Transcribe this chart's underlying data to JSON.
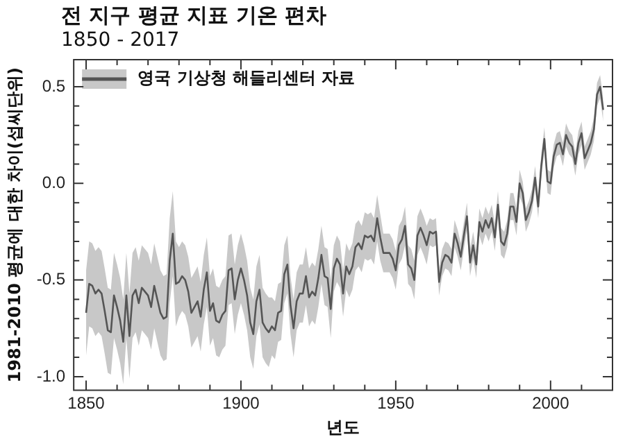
{
  "chart_data": {
    "type": "line",
    "title": "전 지구 평균 지표 기온 편차",
    "subtitle": "1850 - 2017",
    "xlabel": "년도",
    "ylabel": "1981-2010 평균에 대한 차이(섭씨단위)",
    "x": [
      1850,
      1851,
      1852,
      1853,
      1854,
      1855,
      1856,
      1857,
      1858,
      1859,
      1860,
      1861,
      1862,
      1863,
      1864,
      1865,
      1866,
      1867,
      1868,
      1869,
      1870,
      1871,
      1872,
      1873,
      1874,
      1875,
      1876,
      1877,
      1878,
      1879,
      1880,
      1881,
      1882,
      1883,
      1884,
      1885,
      1886,
      1887,
      1888,
      1889,
      1890,
      1891,
      1892,
      1893,
      1894,
      1895,
      1896,
      1897,
      1898,
      1899,
      1900,
      1901,
      1902,
      1903,
      1904,
      1905,
      1906,
      1907,
      1908,
      1909,
      1910,
      1911,
      1912,
      1913,
      1914,
      1915,
      1916,
      1917,
      1918,
      1919,
      1920,
      1921,
      1922,
      1923,
      1924,
      1925,
      1926,
      1927,
      1928,
      1929,
      1930,
      1931,
      1932,
      1933,
      1934,
      1935,
      1936,
      1937,
      1938,
      1939,
      1940,
      1941,
      1942,
      1943,
      1944,
      1945,
      1946,
      1947,
      1948,
      1949,
      1950,
      1951,
      1952,
      1953,
      1954,
      1955,
      1956,
      1957,
      1958,
      1959,
      1960,
      1961,
      1962,
      1963,
      1964,
      1965,
      1966,
      1967,
      1968,
      1969,
      1970,
      1971,
      1972,
      1973,
      1974,
      1975,
      1976,
      1977,
      1978,
      1979,
      1980,
      1981,
      1982,
      1983,
      1984,
      1985,
      1986,
      1987,
      1988,
      1989,
      1990,
      1991,
      1992,
      1993,
      1994,
      1995,
      1996,
      1997,
      1998,
      1999,
      2000,
      2001,
      2002,
      2003,
      2004,
      2005,
      2006,
      2007,
      2008,
      2009,
      2010,
      2011,
      2012,
      2013,
      2014,
      2015,
      2016,
      2017
    ],
    "series": [
      {
        "name": "영국 기상청 해들리센터 자료",
        "color": "#555555",
        "values": [
          -0.67,
          -0.52,
          -0.53,
          -0.57,
          -0.55,
          -0.57,
          -0.66,
          -0.76,
          -0.77,
          -0.58,
          -0.64,
          -0.71,
          -0.82,
          -0.58,
          -0.79,
          -0.58,
          -0.55,
          -0.62,
          -0.54,
          -0.56,
          -0.58,
          -0.64,
          -0.53,
          -0.6,
          -0.67,
          -0.7,
          -0.69,
          -0.4,
          -0.26,
          -0.52,
          -0.51,
          -0.48,
          -0.5,
          -0.56,
          -0.67,
          -0.64,
          -0.61,
          -0.69,
          -0.55,
          -0.46,
          -0.66,
          -0.62,
          -0.71,
          -0.72,
          -0.68,
          -0.66,
          -0.45,
          -0.44,
          -0.6,
          -0.5,
          -0.44,
          -0.5,
          -0.58,
          -0.72,
          -0.78,
          -0.61,
          -0.55,
          -0.72,
          -0.75,
          -0.77,
          -0.74,
          -0.76,
          -0.67,
          -0.66,
          -0.47,
          -0.42,
          -0.63,
          -0.75,
          -0.61,
          -0.57,
          -0.57,
          -0.48,
          -0.59,
          -0.56,
          -0.58,
          -0.49,
          -0.37,
          -0.48,
          -0.49,
          -0.65,
          -0.44,
          -0.39,
          -0.42,
          -0.57,
          -0.43,
          -0.47,
          -0.43,
          -0.33,
          -0.31,
          -0.34,
          -0.27,
          -0.28,
          -0.27,
          -0.3,
          -0.18,
          -0.28,
          -0.36,
          -0.36,
          -0.36,
          -0.39,
          -0.45,
          -0.32,
          -0.29,
          -0.22,
          -0.42,
          -0.44,
          -0.5,
          -0.27,
          -0.23,
          -0.27,
          -0.32,
          -0.25,
          -0.26,
          -0.25,
          -0.51,
          -0.41,
          -0.37,
          -0.38,
          -0.41,
          -0.26,
          -0.31,
          -0.38,
          -0.27,
          -0.17,
          -0.41,
          -0.32,
          -0.42,
          -0.2,
          -0.25,
          -0.19,
          -0.23,
          -0.18,
          -0.28,
          -0.11,
          -0.3,
          -0.32,
          -0.26,
          -0.12,
          -0.12,
          -0.2,
          0.0,
          -0.05,
          -0.19,
          -0.15,
          -0.09,
          0.03,
          -0.12,
          0.09,
          0.23,
          0.01,
          0.0,
          0.14,
          0.2,
          0.21,
          0.15,
          0.25,
          0.21,
          0.19,
          0.1,
          0.21,
          0.26,
          0.13,
          0.17,
          0.21,
          0.28,
          0.46,
          0.5,
          0.38
        ],
        "lower": [
          -0.89,
          -0.74,
          -0.75,
          -0.79,
          -0.77,
          -0.79,
          -0.88,
          -0.98,
          -0.99,
          -0.8,
          -0.86,
          -0.93,
          -1.04,
          -0.8,
          -1.01,
          -0.8,
          -0.77,
          -0.84,
          -0.76,
          -0.78,
          -0.8,
          -0.86,
          -0.75,
          -0.82,
          -0.89,
          -0.92,
          -0.91,
          -0.62,
          -0.48,
          -0.74,
          -0.69,
          -0.66,
          -0.68,
          -0.74,
          -0.85,
          -0.82,
          -0.79,
          -0.87,
          -0.73,
          -0.64,
          -0.84,
          -0.8,
          -0.89,
          -0.9,
          -0.86,
          -0.84,
          -0.63,
          -0.62,
          -0.78,
          -0.68,
          -0.62,
          -0.68,
          -0.76,
          -0.9,
          -0.96,
          -0.79,
          -0.73,
          -0.9,
          -0.93,
          -0.95,
          -0.89,
          -0.91,
          -0.82,
          -0.81,
          -0.62,
          -0.57,
          -0.78,
          -0.9,
          -0.76,
          -0.72,
          -0.72,
          -0.63,
          -0.74,
          -0.71,
          -0.73,
          -0.64,
          -0.52,
          -0.63,
          -0.64,
          -0.8,
          -0.56,
          -0.51,
          -0.54,
          -0.69,
          -0.55,
          -0.59,
          -0.55,
          -0.45,
          -0.43,
          -0.46,
          -0.39,
          -0.4,
          -0.39,
          -0.42,
          -0.3,
          -0.4,
          -0.46,
          -0.46,
          -0.46,
          -0.49,
          -0.55,
          -0.42,
          -0.39,
          -0.32,
          -0.52,
          -0.54,
          -0.6,
          -0.37,
          -0.33,
          -0.37,
          -0.42,
          -0.32,
          -0.33,
          -0.32,
          -0.58,
          -0.48,
          -0.44,
          -0.45,
          -0.48,
          -0.33,
          -0.38,
          -0.45,
          -0.34,
          -0.24,
          -0.48,
          -0.39,
          -0.49,
          -0.27,
          -0.32,
          -0.26,
          -0.3,
          -0.25,
          -0.35,
          -0.18,
          -0.37,
          -0.39,
          -0.33,
          -0.19,
          -0.19,
          -0.27,
          -0.07,
          -0.11,
          -0.25,
          -0.21,
          -0.15,
          -0.03,
          -0.18,
          0.03,
          0.17,
          -0.05,
          -0.06,
          0.08,
          0.14,
          0.15,
          0.09,
          0.19,
          0.15,
          0.13,
          0.04,
          0.15,
          0.2,
          0.07,
          0.11,
          0.15,
          0.22,
          0.4,
          0.44,
          0.32
        ],
        "upper": [
          -0.45,
          -0.3,
          -0.31,
          -0.35,
          -0.33,
          -0.35,
          -0.44,
          -0.54,
          -0.55,
          -0.36,
          -0.42,
          -0.49,
          -0.6,
          -0.36,
          -0.57,
          -0.36,
          -0.33,
          -0.4,
          -0.32,
          -0.34,
          -0.36,
          -0.42,
          -0.31,
          -0.38,
          -0.45,
          -0.48,
          -0.47,
          -0.18,
          -0.04,
          -0.3,
          -0.33,
          -0.3,
          -0.32,
          -0.38,
          -0.49,
          -0.46,
          -0.43,
          -0.51,
          -0.37,
          -0.28,
          -0.48,
          -0.44,
          -0.53,
          -0.54,
          -0.5,
          -0.48,
          -0.27,
          -0.26,
          -0.42,
          -0.32,
          -0.26,
          -0.32,
          -0.4,
          -0.54,
          -0.6,
          -0.43,
          -0.37,
          -0.54,
          -0.57,
          -0.59,
          -0.59,
          -0.61,
          -0.52,
          -0.51,
          -0.32,
          -0.27,
          -0.48,
          -0.6,
          -0.46,
          -0.42,
          -0.42,
          -0.33,
          -0.44,
          -0.41,
          -0.43,
          -0.34,
          -0.22,
          -0.33,
          -0.34,
          -0.5,
          -0.32,
          -0.27,
          -0.3,
          -0.45,
          -0.31,
          -0.35,
          -0.31,
          -0.21,
          -0.19,
          -0.22,
          -0.15,
          -0.16,
          -0.15,
          -0.18,
          -0.06,
          -0.16,
          -0.26,
          -0.26,
          -0.26,
          -0.29,
          -0.35,
          -0.22,
          -0.19,
          -0.12,
          -0.32,
          -0.34,
          -0.4,
          -0.17,
          -0.13,
          -0.17,
          -0.22,
          -0.18,
          -0.19,
          -0.18,
          -0.44,
          -0.34,
          -0.3,
          -0.31,
          -0.34,
          -0.19,
          -0.24,
          -0.31,
          -0.2,
          -0.1,
          -0.34,
          -0.25,
          -0.35,
          -0.13,
          -0.18,
          -0.12,
          -0.16,
          -0.11,
          -0.21,
          -0.04,
          -0.23,
          -0.25,
          -0.19,
          -0.05,
          -0.05,
          -0.13,
          0.07,
          0.01,
          -0.13,
          -0.09,
          -0.03,
          0.09,
          -0.06,
          0.15,
          0.29,
          0.07,
          0.06,
          0.2,
          0.26,
          0.27,
          0.21,
          0.31,
          0.27,
          0.25,
          0.16,
          0.27,
          0.32,
          0.19,
          0.23,
          0.27,
          0.34,
          0.52,
          0.56,
          0.44
        ]
      }
    ],
    "xlim": [
      1846,
      2020
    ],
    "xticks": [
      1850,
      {
        "value": 1860,
        "label": null
      },
      {
        "value": 1870,
        "label": null
      },
      {
        "value": 1880,
        "label": null
      },
      {
        "value": 1890,
        "label": null
      },
      1900,
      {
        "value": 1910,
        "label": null
      },
      {
        "value": 1920,
        "label": null
      },
      {
        "value": 1930,
        "label": null
      },
      {
        "value": 1940,
        "label": null
      },
      1950,
      {
        "value": 1960,
        "label": null
      },
      {
        "value": 1970,
        "label": null
      },
      {
        "value": 1980,
        "label": null
      },
      {
        "value": 1990,
        "label": null
      },
      2000,
      {
        "value": 2010,
        "label": null
      }
    ],
    "ylim": [
      -1.07,
      0.64
    ],
    "yticks": [
      {
        "value": -1.0,
        "label": "-1.0"
      },
      {
        "value": -0.9,
        "label": null
      },
      {
        "value": -0.8,
        "label": null
      },
      {
        "value": -0.7,
        "label": null
      },
      {
        "value": -0.6,
        "label": null
      },
      -0.5,
      {
        "value": -0.4,
        "label": null
      },
      {
        "value": -0.3,
        "label": null
      },
      {
        "value": -0.2,
        "label": null
      },
      {
        "value": -0.1,
        "label": null
      },
      {
        "value": 0,
        "label": "0.0"
      },
      {
        "value": 0.1,
        "label": null
      },
      {
        "value": 0.2,
        "label": null
      },
      {
        "value": 0.3,
        "label": null
      },
      {
        "value": 0.4,
        "label": null
      },
      0.5
    ],
    "legend": "top left",
    "marker": "none",
    "line_style": "solid"
  }
}
